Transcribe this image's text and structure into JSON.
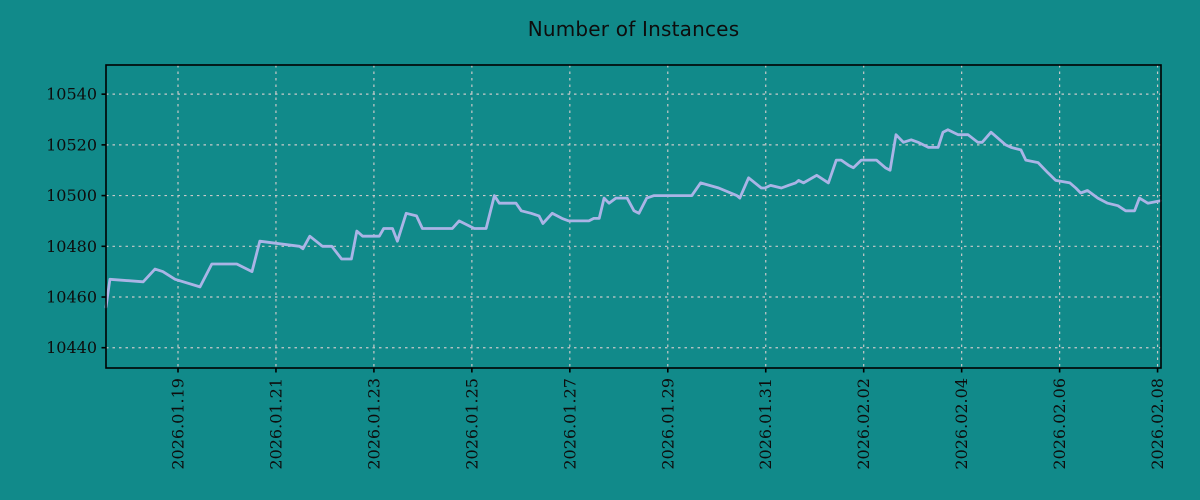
{
  "chart_data": {
    "type": "line",
    "title": "Number of Instances",
    "grid": true,
    "legend": false,
    "colors": {
      "background": "#118a8a",
      "line": "#aab4e6",
      "grid": "#c9c9c9",
      "spine": "#000000",
      "text": "#0d0d0d"
    },
    "x_axis": {
      "tick_labels": [
        "2026.01.19",
        "2026.01.21",
        "2026.01.23",
        "2026.01.25",
        "2026.01.27",
        "2026.01.29",
        "2026.01.31",
        "2026.02.02",
        "2026.02.04",
        "2026.02.06",
        "2026.02.08"
      ],
      "tick_offsets_days": [
        0,
        2,
        4,
        6,
        8,
        10,
        12,
        14,
        16,
        18,
        20
      ],
      "range_days": [
        -1.47,
        20.07
      ],
      "label_rotation_deg": 90
    },
    "y_axis": {
      "ticks": [
        10440,
        10460,
        10480,
        10500,
        10520,
        10540
      ],
      "range": [
        10432,
        10551.5
      ]
    },
    "series": [
      {
        "name": "instances",
        "x_unit": "days since 2026.01.19",
        "points": [
          [
            -1.47,
            10456
          ],
          [
            -1.39,
            10467
          ],
          [
            -0.71,
            10466
          ],
          [
            -0.47,
            10471
          ],
          [
            -0.31,
            10470
          ],
          [
            -0.06,
            10467
          ],
          [
            0.45,
            10464
          ],
          [
            0.69,
            10473
          ],
          [
            1.2,
            10473
          ],
          [
            1.51,
            10470
          ],
          [
            1.67,
            10482
          ],
          [
            2.08,
            10481
          ],
          [
            2.48,
            10480
          ],
          [
            2.55,
            10479
          ],
          [
            2.69,
            10484
          ],
          [
            2.95,
            10480
          ],
          [
            3.14,
            10480
          ],
          [
            3.34,
            10475
          ],
          [
            3.54,
            10475
          ],
          [
            3.65,
            10486
          ],
          [
            3.77,
            10484
          ],
          [
            4.11,
            10484
          ],
          [
            4.2,
            10487
          ],
          [
            4.38,
            10487
          ],
          [
            4.48,
            10482
          ],
          [
            4.66,
            10493
          ],
          [
            4.87,
            10492
          ],
          [
            4.99,
            10487
          ],
          [
            5.6,
            10487
          ],
          [
            5.74,
            10490
          ],
          [
            6.05,
            10487
          ],
          [
            6.29,
            10487
          ],
          [
            6.46,
            10500
          ],
          [
            6.56,
            10497
          ],
          [
            6.8,
            10497
          ],
          [
            6.9,
            10497
          ],
          [
            7.01,
            10494
          ],
          [
            7.21,
            10493
          ],
          [
            7.37,
            10492
          ],
          [
            7.45,
            10489
          ],
          [
            7.64,
            10493
          ],
          [
            7.84,
            10491
          ],
          [
            7.98,
            10490
          ],
          [
            8.39,
            10490
          ],
          [
            8.49,
            10491
          ],
          [
            8.6,
            10491
          ],
          [
            8.7,
            10499
          ],
          [
            8.8,
            10497
          ],
          [
            8.94,
            10499
          ],
          [
            9.17,
            10499
          ],
          [
            9.31,
            10494
          ],
          [
            9.41,
            10493
          ],
          [
            9.57,
            10499
          ],
          [
            9.72,
            10500
          ],
          [
            10.49,
            10500
          ],
          [
            10.67,
            10505
          ],
          [
            11.04,
            10503
          ],
          [
            11.41,
            10500
          ],
          [
            11.47,
            10499
          ],
          [
            11.65,
            10507
          ],
          [
            11.91,
            10503
          ],
          [
            11.98,
            10503
          ],
          [
            12.1,
            10504
          ],
          [
            12.32,
            10503
          ],
          [
            12.46,
            10504
          ],
          [
            12.61,
            10505
          ],
          [
            12.67,
            10506
          ],
          [
            12.77,
            10505
          ],
          [
            13.04,
            10508
          ],
          [
            13.12,
            10507
          ],
          [
            13.28,
            10505
          ],
          [
            13.44,
            10514
          ],
          [
            13.54,
            10514
          ],
          [
            13.69,
            10512
          ],
          [
            13.79,
            10511
          ],
          [
            13.95,
            10514
          ],
          [
            14.26,
            10514
          ],
          [
            14.44,
            10511
          ],
          [
            14.54,
            10510
          ],
          [
            14.66,
            10524
          ],
          [
            14.81,
            10521
          ],
          [
            14.97,
            10522
          ],
          [
            15.11,
            10521
          ],
          [
            15.32,
            10519
          ],
          [
            15.52,
            10519
          ],
          [
            15.62,
            10525
          ],
          [
            15.72,
            10526
          ],
          [
            15.93,
            10524
          ],
          [
            16.13,
            10524
          ],
          [
            16.33,
            10521
          ],
          [
            16.42,
            10521
          ],
          [
            16.6,
            10525
          ],
          [
            16.9,
            10520
          ],
          [
            17.01,
            10519
          ],
          [
            17.21,
            10518
          ],
          [
            17.31,
            10514
          ],
          [
            17.56,
            10513
          ],
          [
            17.76,
            10509
          ],
          [
            17.92,
            10506
          ],
          [
            18.21,
            10505
          ],
          [
            18.33,
            10503
          ],
          [
            18.43,
            10501
          ],
          [
            18.57,
            10502
          ],
          [
            18.78,
            10499
          ],
          [
            18.98,
            10497
          ],
          [
            19.19,
            10496
          ],
          [
            19.35,
            10494
          ],
          [
            19.53,
            10494
          ],
          [
            19.63,
            10499
          ],
          [
            19.8,
            10497
          ],
          [
            20.06,
            10498
          ]
        ]
      }
    ]
  }
}
